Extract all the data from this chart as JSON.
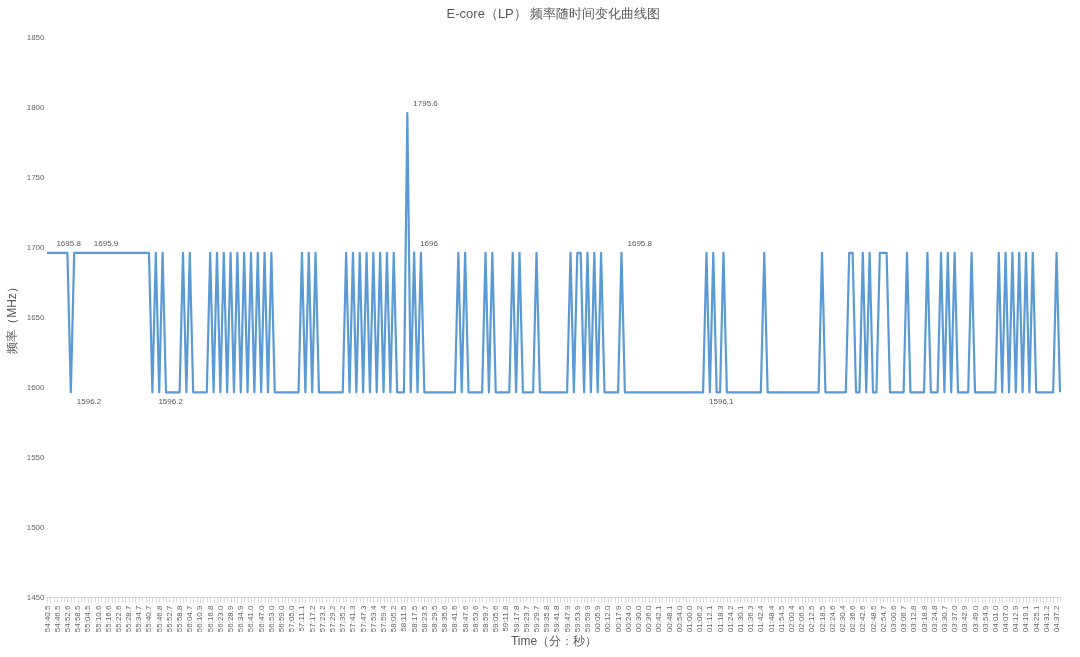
{
  "chart_data": {
    "type": "line",
    "title": "E-core（LP） 频率随时间变化曲线图",
    "xlabel": "Time（分：秒）",
    "ylabel": "频率（MHz）",
    "categories": [
      "54:40.5",
      null,
      null,
      "54:46.5",
      null,
      null,
      "54:52.6",
      null,
      null,
      "54:58.5",
      null,
      null,
      "55:04.5",
      null,
      null,
      "55:10.6",
      null,
      null,
      "55:16.6",
      null,
      null,
      "55:22.6",
      null,
      null,
      "55:28.7",
      null,
      null,
      "55:34.7",
      null,
      null,
      "55:40.7",
      null,
      null,
      "55:46.8",
      null,
      null,
      "55:52.7",
      null,
      null,
      "55:58.8",
      null,
      null,
      "56:04.7",
      null,
      null,
      "56:10.9",
      null,
      null,
      "56:16.8",
      null,
      null,
      "56:23.0",
      null,
      null,
      "56:28.9",
      null,
      null,
      "56:34.9",
      null,
      null,
      "56:41.0",
      null,
      null,
      "56:47.0",
      null,
      null,
      "56:53.0",
      null,
      null,
      "56:59.0",
      null,
      null,
      "57:05.0",
      null,
      null,
      "57:11.1",
      null,
      null,
      "57:17.2",
      null,
      null,
      "57:23.2",
      null,
      null,
      "57:29.2",
      null,
      null,
      "57:35.2",
      null,
      null,
      "57:41.3",
      null,
      null,
      "57:47.3",
      null,
      null,
      "57:53.4",
      null,
      null,
      "57:59.4",
      null,
      null,
      "58:05.2",
      null,
      null,
      "58:11.5",
      null,
      null,
      "58:17.5",
      null,
      null,
      "58:23.5",
      null,
      null,
      "58:29.5",
      null,
      null,
      "58:35.6",
      null,
      null,
      "58:41.6",
      null,
      null,
      "58:47.6",
      null,
      null,
      "58:53.6",
      null,
      null,
      "58:59.7",
      null,
      null,
      "59:05.6",
      null,
      null,
      "59:11.8",
      null,
      null,
      "59:17.8",
      null,
      null,
      "59:23.7",
      null,
      null,
      "59:29.7",
      null,
      null,
      "59:35.8",
      null,
      null,
      "59:41.8",
      null,
      null,
      "59:47.9",
      null,
      null,
      "59:53.9",
      null,
      null,
      "59:59.9",
      null,
      null,
      "00:05.9",
      null,
      null,
      "00:12.0",
      null,
      null,
      "00:17.9",
      null,
      null,
      "00:24.0",
      null,
      null,
      "00:30.0",
      null,
      null,
      "00:36.0",
      null,
      null,
      "00:42.1",
      null,
      null,
      "00:48.1",
      null,
      null,
      "00:54.0",
      null,
      null,
      "01:00.0",
      null,
      null,
      "01:06.2",
      null,
      null,
      "01:12.1",
      null,
      null,
      "01:18.3",
      null,
      null,
      "01:24.2",
      null,
      null,
      "01:30.1",
      null,
      null,
      "01:36.3",
      null,
      null,
      "01:42.4",
      null,
      null,
      "01:48.4",
      null,
      null,
      "01:54.5",
      null,
      null,
      "02:00.4",
      null,
      null,
      "02:06.5",
      null,
      null,
      "02:12.5",
      null,
      null,
      "02:18.5",
      null,
      null,
      "02:24.6",
      null,
      null,
      "02:30.4",
      null,
      null,
      "02:36.6",
      null,
      null,
      "02:42.6",
      null,
      null,
      "02:48.5",
      null,
      null,
      "02:54.7",
      null,
      null,
      "03:00.6",
      null,
      null,
      "03:06.7",
      null,
      null,
      "03:12.8",
      null,
      null,
      "03:18.8",
      null,
      null,
      "03:24.8",
      null,
      null,
      "03:30.7",
      null,
      null,
      "03:37.0",
      null,
      null,
      "03:42.9",
      null,
      null,
      "03:49.0",
      null,
      null,
      "03:54.9",
      null,
      null,
      "04:01.0",
      null,
      null,
      "04:07.0",
      null,
      null,
      "04:12.9",
      null,
      null,
      "04:19.1",
      null,
      null,
      "04:25.1",
      null,
      null,
      "04:31.2",
      null,
      null,
      "04:37.2",
      null
    ],
    "series": [
      {
        "color": "#5b9bd5",
        "values": [
          1695.8,
          1695.8,
          1695.8,
          1695.8,
          1695.8,
          1695.8,
          1695.8,
          1596.2,
          1695.8,
          1695.8,
          1695.8,
          1695.8,
          1695.9,
          1695.8,
          1695.8,
          1695.8,
          1695.8,
          1695.8,
          1695.8,
          1695.8,
          1695.8,
          1695.8,
          1695.8,
          1695.8,
          1695.8,
          1695.8,
          1695.8,
          1695.8,
          1695.8,
          1695.8,
          1695.8,
          1596.2,
          1695.8,
          1596.2,
          1695.8,
          1596.2,
          1596.2,
          1596.2,
          1596.2,
          1596.2,
          1695.8,
          1596.2,
          1695.8,
          1596.2,
          1596.2,
          1596.2,
          1596.2,
          1596.2,
          1695.8,
          1596.2,
          1695.8,
          1596.2,
          1695.8,
          1596.2,
          1695.8,
          1596.2,
          1695.8,
          1596.2,
          1695.8,
          1596.2,
          1695.8,
          1596.2,
          1695.8,
          1596.2,
          1695.8,
          1596.2,
          1695.8,
          1596.2,
          1596.2,
          1596.2,
          1596.2,
          1596.2,
          1596.2,
          1596.2,
          1596.2,
          1695.8,
          1596.2,
          1695.8,
          1596.2,
          1695.8,
          1596.2,
          1596.2,
          1596.2,
          1596.2,
          1596.2,
          1596.2,
          1596.2,
          1596.2,
          1695.8,
          1596.2,
          1695.8,
          1596.2,
          1695.8,
          1596.2,
          1695.8,
          1596.2,
          1695.8,
          1596.2,
          1695.8,
          1596.2,
          1695.8,
          1596.2,
          1695.8,
          1596.2,
          1596.2,
          1596.2,
          1795.6,
          1596.2,
          1696,
          1596.2,
          1695.8,
          1596.2,
          1596.2,
          1596.2,
          1596.2,
          1596.2,
          1596.2,
          1596.2,
          1596.2,
          1596.2,
          1596.2,
          1695.8,
          1596.2,
          1695.8,
          1596.2,
          1596.2,
          1596.2,
          1596.2,
          1596.2,
          1695.8,
          1596.2,
          1695.8,
          1596.2,
          1596.2,
          1596.2,
          1596.2,
          1596.2,
          1695.8,
          1596.2,
          1695.8,
          1596.2,
          1596.2,
          1596.2,
          1596.2,
          1695.8,
          1596.2,
          1596.2,
          1596.2,
          1596.2,
          1596.2,
          1596.2,
          1596.2,
          1596.2,
          1596.2,
          1695.8,
          1596.2,
          1695.8,
          1695.8,
          1596.2,
          1695.8,
          1596.2,
          1695.8,
          1596.2,
          1695.8,
          1596.2,
          1596.2,
          1596.2,
          1596.2,
          1596.2,
          1695.8,
          1596.2,
          1596.2,
          1596.2,
          1596.2,
          1596.2,
          1596.2,
          1596.2,
          1596.2,
          1596.2,
          1596.2,
          1596.2,
          1596.2,
          1596.2,
          1596.2,
          1596.2,
          1596.2,
          1596.2,
          1596.2,
          1596.2,
          1596.2,
          1596.2,
          1596.2,
          1596.2,
          1596.1,
          1695.8,
          1596.2,
          1695.8,
          1596.2,
          1596.2,
          1695.8,
          1596.2,
          1596.2,
          1596.2,
          1596.2,
          1596.2,
          1596.2,
          1596.2,
          1596.2,
          1596.2,
          1596.2,
          1596.2,
          1695.8,
          1596.2,
          1596.2,
          1596.2,
          1596.2,
          1596.2,
          1596.2,
          1596.2,
          1596.2,
          1596.2,
          1596.2,
          1596.2,
          1596.2,
          1596.2,
          1596.2,
          1596.2,
          1596.2,
          1695.8,
          1596.2,
          1596.2,
          1596.2,
          1596.2,
          1596.2,
          1596.2,
          1596.2,
          1695.8,
          1695.8,
          1596.2,
          1596.2,
          1695.8,
          1596.2,
          1695.8,
          1596.2,
          1596.2,
          1695.8,
          1695.8,
          1695.8,
          1596.2,
          1596.2,
          1596.2,
          1596.2,
          1596.2,
          1695.8,
          1596.2,
          1596.2,
          1596.2,
          1596.2,
          1596.2,
          1695.8,
          1596.2,
          1596.2,
          1596.2,
          1695.8,
          1596.2,
          1695.8,
          1596.2,
          1695.8,
          1596.2,
          1596.2,
          1596.2,
          1596.2,
          1695.8,
          1596.2,
          1596.2,
          1596.2,
          1596.2,
          1596.2,
          1596.2,
          1596.2,
          1695.8,
          1596.2,
          1695.8,
          1596.2,
          1695.8,
          1596.2,
          1695.8,
          1596.2,
          1695.8,
          1596.2,
          1695.8,
          1596.2,
          1596.2,
          1596.2,
          1596.2,
          1596.2,
          1596.2,
          1695.8,
          1596.2
        ],
        "value_labels": [
          null,
          "1695.8",
          null,
          null,
          null,
          null,
          null,
          "1596.2",
          null,
          null,
          null,
          null,
          "1695.9",
          null,
          null,
          null,
          null,
          null,
          null,
          null,
          null,
          null,
          null,
          null,
          null,
          null,
          null,
          null,
          null,
          null,
          null,
          "1596.2",
          null,
          null,
          null,
          null,
          null,
          null,
          null,
          null,
          null,
          null,
          null,
          null,
          null,
          null,
          null,
          null,
          null,
          null,
          null,
          null,
          null,
          null,
          null,
          null,
          null,
          null,
          null,
          null,
          null,
          null,
          null,
          null,
          null,
          null,
          null,
          null,
          null,
          null,
          null,
          null,
          null,
          null,
          null,
          null,
          null,
          null,
          null,
          null,
          null,
          null,
          null,
          null,
          null,
          null,
          null,
          null,
          null,
          null,
          null,
          null,
          null,
          null,
          null,
          null,
          null,
          null,
          null,
          null,
          null,
          null,
          null,
          null,
          null,
          null,
          "1795.6",
          null,
          "1696",
          null,
          null,
          null,
          null,
          null,
          null,
          null,
          null,
          null,
          null,
          null,
          null,
          null,
          null,
          null,
          null,
          null,
          null,
          null,
          null,
          null,
          null,
          null,
          null,
          null,
          null,
          null,
          null,
          null,
          null,
          null,
          null,
          null,
          null,
          null,
          null,
          null,
          null,
          null,
          null,
          null,
          null,
          null,
          null,
          null,
          null,
          null,
          null,
          null,
          null,
          null,
          null,
          null,
          null,
          null,
          null,
          null,
          null,
          null,
          null,
          "1695.8",
          null,
          null,
          null,
          null,
          null,
          null,
          null,
          null,
          null,
          null,
          null,
          null,
          null,
          null,
          null,
          null,
          null,
          null,
          null,
          null,
          null,
          null,
          null,
          "1596.1",
          null,
          null,
          null,
          null,
          null,
          null,
          null,
          null,
          null,
          null,
          null,
          null,
          null,
          null,
          null,
          null,
          null,
          null,
          null,
          null,
          null,
          null,
          null,
          null,
          null,
          null,
          null,
          null,
          null,
          null,
          null,
          null,
          null,
          null,
          null,
          null,
          null,
          null,
          null,
          null,
          null,
          null,
          null,
          null,
          null,
          null,
          null,
          null,
          null,
          null,
          null,
          null,
          null,
          null,
          null,
          null,
          null,
          null,
          null,
          null,
          null,
          null,
          null,
          null,
          null,
          null,
          null,
          null,
          null,
          null,
          null,
          null,
          null,
          null,
          null,
          null,
          null,
          null,
          null,
          null,
          null,
          null,
          null,
          null,
          null,
          null,
          null,
          null,
          null,
          null,
          null,
          null,
          null,
          null,
          null,
          null,
          null,
          null,
          null,
          null,
          null,
          null,
          null,
          null,
          null
        ]
      }
    ],
    "ylim": [
      1450,
      1850
    ],
    "yticks": [
      1450,
      1500,
      1550,
      1600,
      1650,
      1700,
      1750,
      1800,
      1850
    ]
  }
}
